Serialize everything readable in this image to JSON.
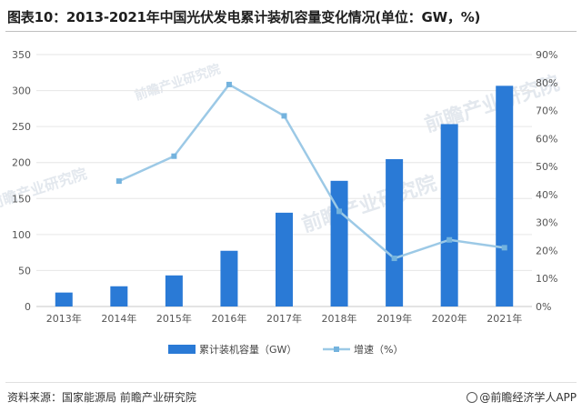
{
  "header": {
    "title": "图表10：2013-2021年中国光伏发电累计装机容量变化情况(单位：GW，%)"
  },
  "footer": {
    "source": "资料来源：国家能源局 前瞻产业研究院",
    "credit": "@前瞻经济学人APP"
  },
  "watermark": {
    "text": "前瞻产业研究院"
  },
  "colors": {
    "bar": "#2a7ad6",
    "line": "#9cc9e6",
    "marker": "#74b3de",
    "grid": "#e6e6e6"
  },
  "chart_data": {
    "type": "bar",
    "categories": [
      "2013年",
      "2014年",
      "2015年",
      "2016年",
      "2017年",
      "2018年",
      "2019年",
      "2020年",
      "2021年"
    ],
    "series": [
      {
        "name": "累计装机容量（GW）",
        "type": "bar",
        "axis": "left",
        "values": [
          19.4,
          28.1,
          43.2,
          77.4,
          130.3,
          174.6,
          204.7,
          253.4,
          306.6
        ]
      },
      {
        "name": "增速（%）",
        "type": "line",
        "axis": "right",
        "values": [
          null,
          44.8,
          53.7,
          79.3,
          68.1,
          34.0,
          17.2,
          23.8,
          21.0
        ]
      }
    ],
    "y_left": {
      "ylim": [
        0,
        350
      ],
      "ticks": [
        "0",
        "50",
        "100",
        "150",
        "200",
        "250",
        "300",
        "350"
      ]
    },
    "y_right": {
      "ylim": [
        0,
        90
      ],
      "ticks": [
        "0%",
        "10%",
        "20%",
        "30%",
        "40%",
        "50%",
        "60%",
        "70%",
        "80%",
        "90%"
      ]
    },
    "grid": true,
    "legend_position": "bottom-center"
  }
}
